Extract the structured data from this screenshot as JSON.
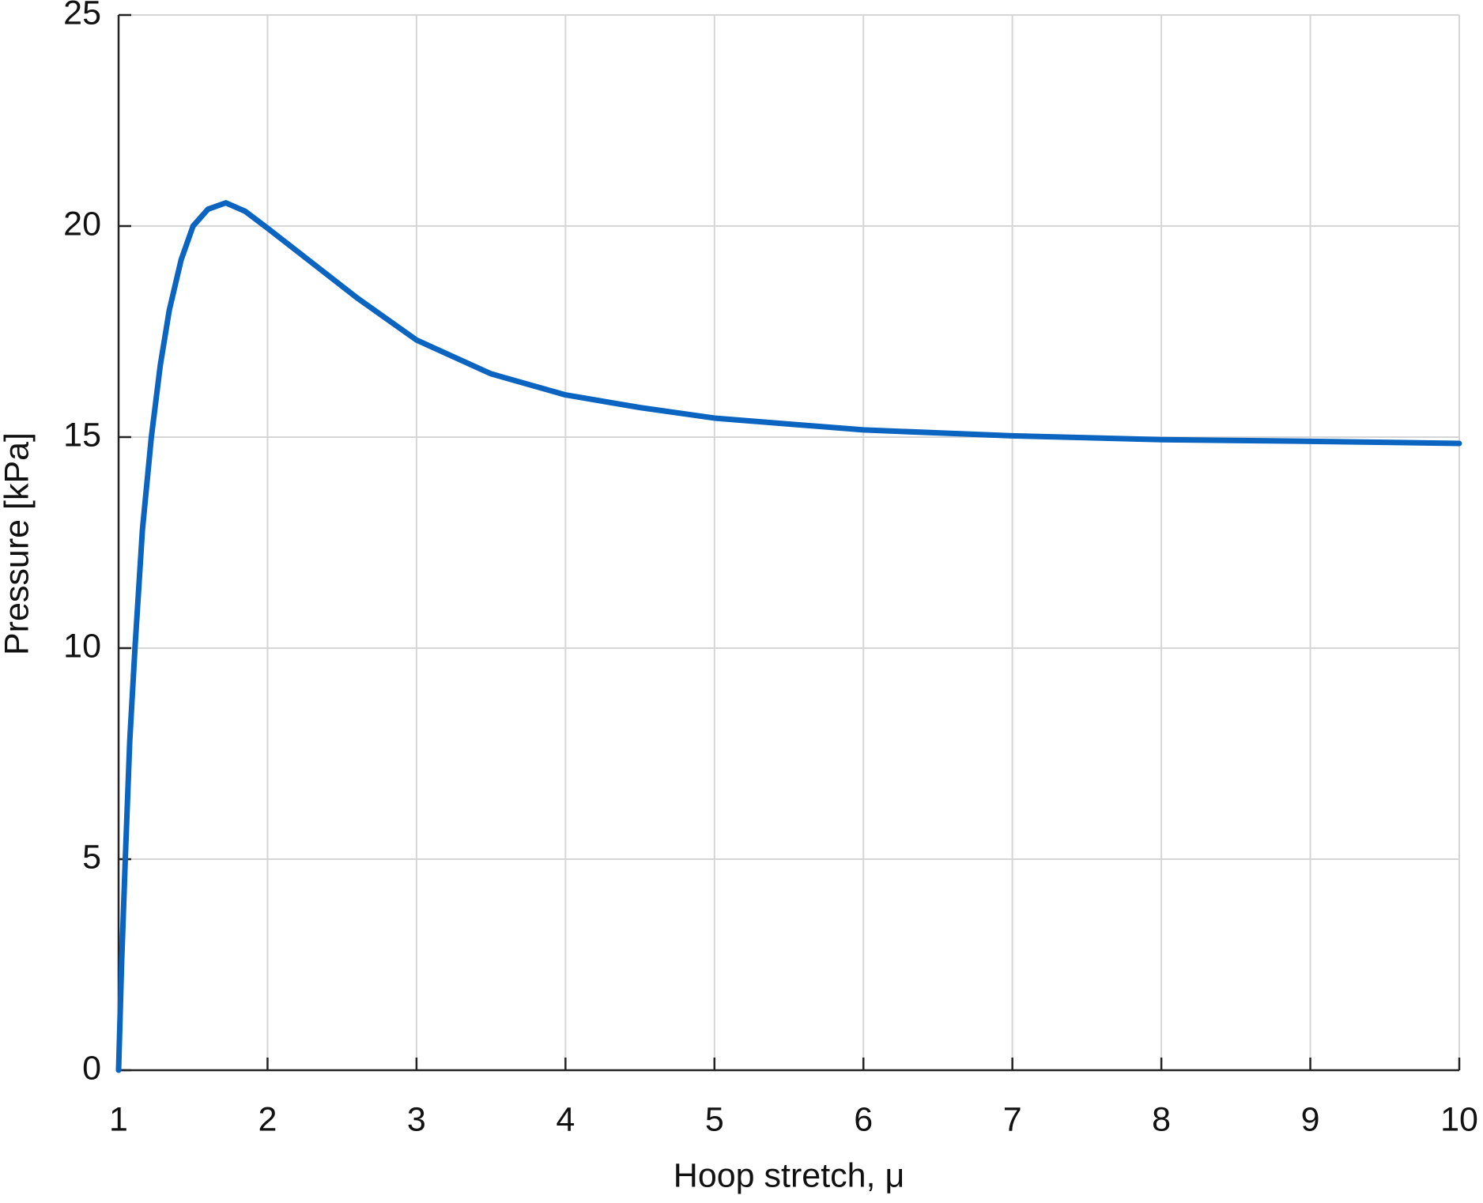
{
  "chart_data": {
    "type": "line",
    "x_label": "Hoop stretch, μ",
    "y_label": "Pressure [kPa]",
    "xlim": [
      1,
      10
    ],
    "xticks": [
      1,
      2,
      3,
      4,
      5,
      6,
      7,
      8,
      9,
      10
    ],
    "ylim": [
      0,
      25
    ],
    "yticks": [
      0,
      5,
      10,
      15,
      20,
      25
    ],
    "grid": true,
    "series": [
      {
        "color": "#0a64c0",
        "x": [
          1,
          1.02,
          1.045,
          1.075,
          1.11,
          1.16,
          1.22,
          1.28,
          1.34,
          1.42,
          1.5,
          1.6,
          1.72,
          1.85,
          2,
          2.2,
          2.4,
          2.6,
          2.8,
          3,
          3.5,
          4,
          4.5,
          5,
          6,
          7,
          8,
          9,
          10
        ],
        "values": [
          0,
          2.5,
          5,
          7.8,
          10,
          12.8,
          15,
          16.7,
          18,
          19.2,
          20,
          20.4,
          20.55,
          20.35,
          19.95,
          19.4,
          18.85,
          18.3,
          17.8,
          17.3,
          16.5,
          16.0,
          15.7,
          15.45,
          15.17,
          15.03,
          14.94,
          14.9,
          14.85
        ]
      }
    ]
  }
}
